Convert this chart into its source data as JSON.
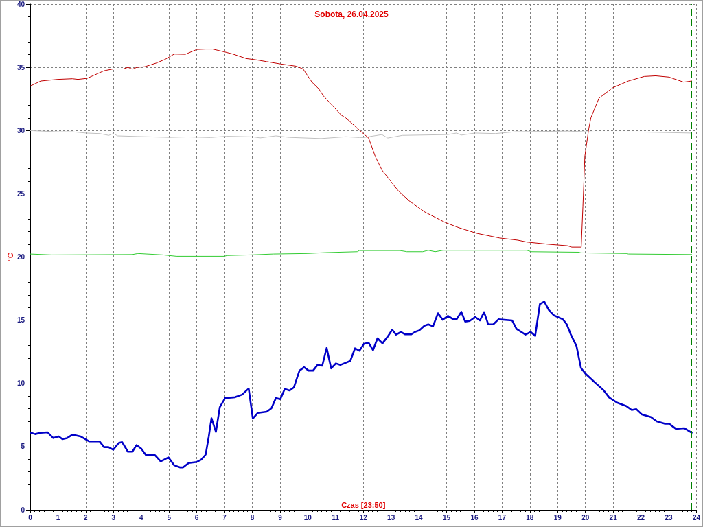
{
  "chart_data": {
    "type": "line",
    "title": "Sobota, 26.04.2025",
    "xlabel": "Czas [23:50]",
    "ylabel": "°C",
    "xlim": [
      0,
      24
    ],
    "xticks": [
      0,
      1,
      2,
      3,
      4,
      5,
      6,
      7,
      8,
      9,
      10,
      11,
      12,
      13,
      14,
      15,
      16,
      17,
      18,
      19,
      20,
      21,
      22,
      23,
      24
    ],
    "ylim": [
      0,
      40
    ],
    "yticks": [
      0,
      5,
      10,
      15,
      20,
      25,
      30,
      35,
      40
    ],
    "grid": true,
    "marker": "none",
    "ref_lines": [
      {
        "axis": "x",
        "value": 23.83,
        "color": "#008000",
        "line_style": "dashed"
      }
    ],
    "series": [
      {
        "color": "#c00000",
        "x": [
          0,
          0.38,
          0.99,
          1.52,
          1.72,
          2.05,
          2.66,
          2.99,
          3.35,
          3.52,
          3.68,
          3.84,
          4.13,
          4.53,
          4.86,
          5.19,
          5.59,
          6.0,
          6.33,
          6.57,
          6.98,
          7.3,
          7.79,
          8.12,
          8.52,
          9.01,
          9.58,
          9.83,
          10.15,
          10.4,
          10.56,
          11.21,
          11.37,
          11.9,
          12.19,
          12.43,
          12.67,
          13.25,
          13.65,
          14.22,
          14.95,
          15.44,
          16.09,
          16.91,
          17.56,
          17.89,
          18.7,
          19.35,
          19.51,
          19.85,
          19.91,
          19.98,
          20.12,
          20.2,
          20.49,
          20.98,
          21.55,
          22.12,
          22.53,
          23.01,
          23.54,
          23.83
        ],
        "values": [
          33.52,
          33.92,
          34.05,
          34.1,
          34.05,
          34.13,
          34.73,
          34.87,
          34.87,
          35.0,
          34.85,
          35.0,
          35.05,
          35.33,
          35.63,
          36.05,
          36.03,
          36.41,
          36.44,
          36.44,
          36.23,
          36.05,
          35.69,
          35.6,
          35.45,
          35.27,
          35.09,
          34.87,
          33.83,
          33.29,
          32.75,
          31.21,
          31.0,
          29.95,
          29.41,
          27.96,
          26.88,
          25.26,
          24.44,
          23.55,
          22.73,
          22.32,
          21.87,
          21.5,
          21.33,
          21.18,
          21.0,
          20.89,
          20.78,
          20.78,
          24.0,
          27.96,
          30.13,
          31.03,
          32.56,
          33.38,
          33.92,
          34.28,
          34.33,
          34.23,
          33.83,
          33.92
        ]
      },
      {
        "color": "#c0c0c0",
        "x": [
          0,
          1.0,
          1.52,
          2.01,
          2.5,
          2.83,
          2.99,
          3.15,
          3.88,
          5.02,
          5.67,
          6.49,
          7.06,
          8.04,
          8.28,
          8.85,
          9.34,
          10.48,
          11.37,
          11.86,
          12.02,
          12.67,
          12.88,
          13.41,
          15.04,
          15.36,
          15.53,
          16.02,
          16.75,
          17.48,
          19.35,
          20.33,
          22.04,
          23.83
        ],
        "values": [
          29.99,
          29.9,
          29.9,
          29.8,
          29.76,
          29.62,
          29.76,
          29.58,
          29.53,
          29.46,
          29.5,
          29.45,
          29.55,
          29.5,
          29.42,
          29.58,
          29.46,
          29.37,
          29.51,
          29.45,
          29.45,
          29.68,
          29.41,
          29.62,
          29.68,
          29.8,
          29.64,
          29.8,
          29.76,
          29.9,
          29.95,
          29.88,
          29.88,
          29.8
        ]
      },
      {
        "color": "#33cc33",
        "x": [
          0,
          0.78,
          3.68,
          3.88,
          4.78,
          5.27,
          6.98,
          7.1,
          7.95,
          8.77,
          9.99,
          10.64,
          11.78,
          11.86,
          13.32,
          13.57,
          14.14,
          14.34,
          14.59,
          14.87,
          17.89,
          18.05,
          19.76,
          19.84,
          21.47,
          21.55,
          23.83
        ],
        "values": [
          20.24,
          20.17,
          20.2,
          20.28,
          20.17,
          20.06,
          20.06,
          20.12,
          20.17,
          20.24,
          20.28,
          20.35,
          20.42,
          20.51,
          20.51,
          20.42,
          20.42,
          20.53,
          20.42,
          20.53,
          20.53,
          20.42,
          20.38,
          20.33,
          20.28,
          20.24,
          20.2
        ]
      },
      {
        "color": "#0000c8",
        "x": [
          0.02,
          0.18,
          0.38,
          0.63,
          0.83,
          1.03,
          1.16,
          1.32,
          1.52,
          1.81,
          2.13,
          2.5,
          2.66,
          2.82,
          2.99,
          3.19,
          3.31,
          3.52,
          3.68,
          3.83,
          4.0,
          4.17,
          4.49,
          4.7,
          4.98,
          5.19,
          5.39,
          5.51,
          5.71,
          6.0,
          6.16,
          6.32,
          6.43,
          6.53,
          6.69,
          6.83,
          7.02,
          7.38,
          7.63,
          7.87,
          8.02,
          8.2,
          8.52,
          8.69,
          8.85,
          9.01,
          9.17,
          9.34,
          9.5,
          9.7,
          9.87,
          10.03,
          10.19,
          10.35,
          10.52,
          10.68,
          10.84,
          11.01,
          11.17,
          11.53,
          11.7,
          11.86,
          12.02,
          12.19,
          12.35,
          12.51,
          12.69,
          12.88,
          13.04,
          13.18,
          13.36,
          13.5,
          13.73,
          13.86,
          14.02,
          14.2,
          14.34,
          14.51,
          14.69,
          14.86,
          15.05,
          15.24,
          15.36,
          15.53,
          15.67,
          15.83,
          16.03,
          16.2,
          16.35,
          16.5,
          16.68,
          16.87,
          17.36,
          17.52,
          17.84,
          18.03,
          18.19,
          18.36,
          18.52,
          18.68,
          18.86,
          19.19,
          19.33,
          19.47,
          19.68,
          19.84,
          20.0,
          20.33,
          20.65,
          20.86,
          21.14,
          21.47,
          21.67,
          21.83,
          22.04,
          22.36,
          22.57,
          22.85,
          23.01,
          23.26,
          23.56,
          23.83
        ],
        "values": [
          6.1,
          5.99,
          6.1,
          6.13,
          5.68,
          5.81,
          5.59,
          5.67,
          5.95,
          5.81,
          5.41,
          5.41,
          4.96,
          4.96,
          4.76,
          5.29,
          5.36,
          4.6,
          4.6,
          5.12,
          4.84,
          4.33,
          4.33,
          3.83,
          4.15,
          3.52,
          3.36,
          3.36,
          3.7,
          3.79,
          3.97,
          4.37,
          5.77,
          7.25,
          6.17,
          8.12,
          8.84,
          8.91,
          9.11,
          9.6,
          7.22,
          7.67,
          7.76,
          8.03,
          8.84,
          8.75,
          9.56,
          9.44,
          9.69,
          11.01,
          11.28,
          11.01,
          11.01,
          11.46,
          11.4,
          12.81,
          11.19,
          11.58,
          11.46,
          11.78,
          12.77,
          12.58,
          13.13,
          13.22,
          12.63,
          13.57,
          13.17,
          13.71,
          14.25,
          13.86,
          14.07,
          13.89,
          13.89,
          14.07,
          14.2,
          14.56,
          14.67,
          14.52,
          15.55,
          15.03,
          15.34,
          15.07,
          15.07,
          15.66,
          14.89,
          14.94,
          15.25,
          14.98,
          15.64,
          14.67,
          14.67,
          15.07,
          14.98,
          14.31,
          13.86,
          14.07,
          13.75,
          16.27,
          16.47,
          15.82,
          15.39,
          15.07,
          14.67,
          13.89,
          12.95,
          11.22,
          10.77,
          10.1,
          9.47,
          8.88,
          8.48,
          8.21,
          7.9,
          7.97,
          7.54,
          7.34,
          7.0,
          6.82,
          6.82,
          6.41,
          6.46,
          6.1
        ]
      }
    ]
  }
}
